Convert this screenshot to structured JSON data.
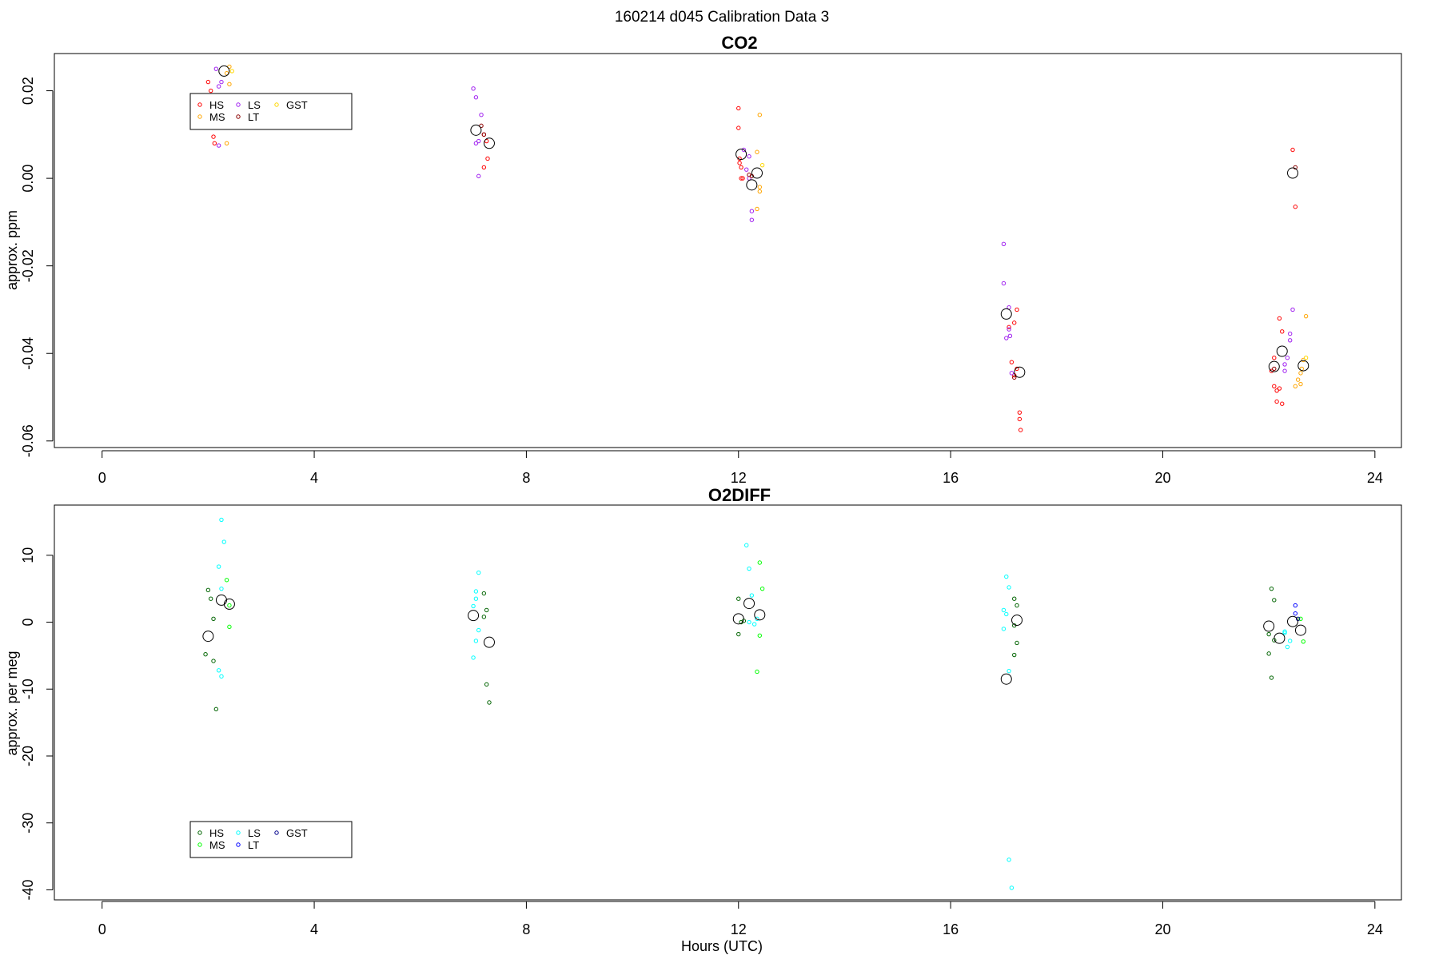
{
  "figure": {
    "title": "160214   d045   Calibration Data 3",
    "xlabel": "Hours (UTC)"
  },
  "chart_data": [
    {
      "type": "scatter",
      "title": "CO2",
      "xlabel": "",
      "ylabel": "approx. ppm",
      "xlim": [
        -0.9,
        24.5
      ],
      "ylim": [
        -0.0615,
        0.0285
      ],
      "xticks": [
        0,
        4,
        8,
        12,
        16,
        20,
        24
      ],
      "yticks": [
        -0.06,
        -0.04,
        -0.02,
        0.0,
        0.02
      ],
      "ytick_labels": [
        "-0.06",
        "-0.04",
        "-0.02",
        "0.00",
        "0.02"
      ],
      "grid": false,
      "legend": {
        "position": "top-left",
        "entries": [
          "HS",
          "MS",
          "LS",
          "LT",
          "GST"
        ]
      },
      "series": [
        {
          "name": "HS",
          "color": "#ff0000",
          "points": [
            [
              2.0,
              0.022
            ],
            [
              2.05,
              0.02
            ],
            [
              2.1,
              0.0095
            ],
            [
              2.12,
              0.008
            ],
            [
              7.2,
              0.01
            ],
            [
              7.25,
              0.0085
            ],
            [
              7.27,
              0.0045
            ],
            [
              7.2,
              0.0025
            ],
            [
              12.0,
              0.016
            ],
            [
              12.0,
              0.0115
            ],
            [
              12.02,
              0.0045
            ],
            [
              12.02,
              0.0035
            ],
            [
              12.05,
              0.0025
            ],
            [
              12.05,
              0.0
            ],
            [
              12.08,
              0.0
            ],
            [
              17.1,
              -0.034
            ],
            [
              17.15,
              -0.042
            ],
            [
              17.2,
              -0.033
            ],
            [
              17.2,
              -0.045
            ],
            [
              17.25,
              -0.03
            ],
            [
              17.25,
              -0.0435
            ],
            [
              17.3,
              -0.0535
            ],
            [
              17.3,
              -0.055
            ],
            [
              17.32,
              -0.0575
            ],
            [
              22.05,
              -0.044
            ],
            [
              22.1,
              -0.041
            ],
            [
              22.1,
              -0.0475
            ],
            [
              22.15,
              -0.0485
            ],
            [
              22.15,
              -0.051
            ],
            [
              22.2,
              -0.048
            ],
            [
              22.2,
              -0.032
            ],
            [
              22.25,
              -0.035
            ],
            [
              22.25,
              -0.0515
            ],
            [
              22.45,
              0.0065
            ],
            [
              22.5,
              -0.0065
            ]
          ]
        },
        {
          "name": "MS",
          "color": "#ffa500",
          "points": [
            [
              2.35,
              0.024
            ],
            [
              2.4,
              0.0255
            ],
            [
              2.4,
              0.0215
            ],
            [
              2.35,
              0.008
            ],
            [
              12.35,
              0.006
            ],
            [
              12.4,
              0.0145
            ],
            [
              12.4,
              -0.002
            ],
            [
              12.35,
              -0.007
            ],
            [
              12.4,
              -0.003
            ],
            [
              22.55,
              -0.046
            ],
            [
              22.6,
              -0.047
            ],
            [
              22.6,
              -0.0445
            ],
            [
              22.65,
              -0.0415
            ],
            [
              22.7,
              -0.0315
            ],
            [
              22.62,
              -0.0435
            ],
            [
              22.5,
              -0.0475
            ]
          ]
        },
        {
          "name": "LS",
          "color": "#a020f0",
          "points": [
            [
              2.15,
              0.025
            ],
            [
              2.2,
              0.021
            ],
            [
              2.25,
              0.022
            ],
            [
              2.2,
              0.0075
            ],
            [
              7.0,
              0.0205
            ],
            [
              7.05,
              0.0185
            ],
            [
              7.05,
              0.008
            ],
            [
              7.1,
              0.0005
            ],
            [
              7.15,
              0.0145
            ],
            [
              7.1,
              0.0085
            ],
            [
              12.1,
              0.0065
            ],
            [
              12.15,
              0.002
            ],
            [
              12.2,
              0.005
            ],
            [
              12.2,
              0.0
            ],
            [
              12.25,
              -0.0075
            ],
            [
              12.25,
              -0.0095
            ],
            [
              17.0,
              -0.015
            ],
            [
              17.0,
              -0.024
            ],
            [
              17.05,
              -0.0365
            ],
            [
              17.1,
              -0.0345
            ],
            [
              17.1,
              -0.0295
            ],
            [
              17.12,
              -0.036
            ],
            [
              17.15,
              -0.0445
            ],
            [
              22.3,
              -0.0425
            ],
            [
              22.35,
              -0.041
            ],
            [
              22.4,
              -0.037
            ],
            [
              22.4,
              -0.0355
            ],
            [
              22.45,
              -0.03
            ],
            [
              22.3,
              -0.044
            ]
          ]
        },
        {
          "name": "LT",
          "color": "#8b0000",
          "points": [
            [
              7.15,
              0.012
            ],
            [
              7.2,
              0.01
            ],
            [
              12.2,
              0.0008
            ],
            [
              12.25,
              0.0005
            ],
            [
              17.2,
              -0.0455
            ],
            [
              22.5,
              0.0025
            ],
            [
              22.1,
              -0.0435
            ]
          ]
        },
        {
          "name": "GST",
          "color": "#ffd700",
          "points": [
            [
              2.45,
              0.0245
            ],
            [
              12.45,
              0.003
            ],
            [
              22.7,
              -0.041
            ]
          ]
        }
      ],
      "means": [
        [
          2.3,
          0.0245
        ],
        [
          7.05,
          0.011
        ],
        [
          7.3,
          0.008
        ],
        [
          12.05,
          0.0055
        ],
        [
          12.25,
          -0.0015
        ],
        [
          12.35,
          0.0012
        ],
        [
          17.05,
          -0.031
        ],
        [
          17.3,
          -0.0443
        ],
        [
          22.1,
          -0.043
        ],
        [
          22.25,
          -0.0395
        ],
        [
          22.45,
          0.0012
        ],
        [
          22.65,
          -0.0428
        ]
      ]
    },
    {
      "type": "scatter",
      "title": "O2DIFF",
      "xlabel": "Hours (UTC)",
      "ylabel": "approx. per meg",
      "xlim": [
        -0.9,
        24.5
      ],
      "ylim": [
        -41.5,
        17.5
      ],
      "xticks": [
        0,
        4,
        8,
        12,
        16,
        20,
        24
      ],
      "yticks": [
        -40,
        -30,
        -20,
        -10,
        0,
        10
      ],
      "ytick_labels": [
        "-40",
        "-30",
        "-20",
        "-10",
        "0",
        "10"
      ],
      "grid": false,
      "legend": {
        "position": "bottom-left",
        "entries": [
          "HS",
          "MS",
          "LS",
          "LT",
          "GST"
        ]
      },
      "series": [
        {
          "name": "HS",
          "color": "#006400",
          "points": [
            [
              2.0,
              4.8
            ],
            [
              2.05,
              3.5
            ],
            [
              2.1,
              0.5
            ],
            [
              1.95,
              -4.8
            ],
            [
              2.1,
              -5.8
            ],
            [
              2.15,
              -13
            ],
            [
              7.2,
              4.3
            ],
            [
              7.25,
              1.8
            ],
            [
              7.2,
              0.8
            ],
            [
              7.25,
              -9.3
            ],
            [
              7.3,
              -12
            ],
            [
              12.0,
              3.5
            ],
            [
              12.0,
              -1.8
            ],
            [
              12.05,
              0
            ],
            [
              12.1,
              0.2
            ],
            [
              17.2,
              3.5
            ],
            [
              17.25,
              2.5
            ],
            [
              17.2,
              -0.5
            ],
            [
              17.25,
              -3.1
            ],
            [
              17.2,
              -4.9
            ],
            [
              22.05,
              5
            ],
            [
              22.1,
              3.3
            ],
            [
              22.0,
              -1.8
            ],
            [
              22.1,
              -2.7
            ],
            [
              22.0,
              -4.7
            ],
            [
              22.05,
              -8.3
            ]
          ]
        },
        {
          "name": "MS",
          "color": "#00ff00",
          "points": [
            [
              2.35,
              6.3
            ],
            [
              2.4,
              2.5
            ],
            [
              2.4,
              -0.7
            ],
            [
              12.4,
              8.9
            ],
            [
              12.45,
              5
            ],
            [
              12.4,
              -2.0
            ],
            [
              12.35,
              -7.4
            ],
            [
              22.65,
              -2.9
            ],
            [
              22.6,
              0.5
            ]
          ]
        },
        {
          "name": "LS",
          "color": "#00ffff",
          "points": [
            [
              2.25,
              15.3
            ],
            [
              2.3,
              12
            ],
            [
              2.2,
              8.3
            ],
            [
              2.25,
              5
            ],
            [
              2.2,
              -7.2
            ],
            [
              2.25,
              -8.1
            ],
            [
              7.1,
              7.4
            ],
            [
              7.05,
              4.6
            ],
            [
              7.05,
              3.5
            ],
            [
              7.0,
              2.4
            ],
            [
              7.1,
              -1.2
            ],
            [
              7.05,
              -2.8
            ],
            [
              7.0,
              -5.3
            ],
            [
              12.15,
              11.5
            ],
            [
              12.2,
              8.0
            ],
            [
              12.25,
              4.0
            ],
            [
              12.2,
              0
            ],
            [
              12.3,
              -0.3
            ],
            [
              12.35,
              0.5
            ],
            [
              17.05,
              6.8
            ],
            [
              17.1,
              5.2
            ],
            [
              17.0,
              1.8
            ],
            [
              17.05,
              1.2
            ],
            [
              17.0,
              -1
            ],
            [
              17.1,
              -7.3
            ],
            [
              17.1,
              -35.5
            ],
            [
              17.15,
              -39.7
            ],
            [
              22.3,
              -1.4
            ],
            [
              22.4,
              -2.8
            ],
            [
              22.35,
              -3.7
            ],
            [
              22.3,
              -1.6
            ]
          ]
        },
        {
          "name": "LT",
          "color": "#0000ff",
          "points": [
            [
              22.5,
              2.5
            ],
            [
              22.5,
              1.3
            ]
          ]
        },
        {
          "name": "GST",
          "color": "#00008b",
          "points": [
            [
              22.55,
              0.5
            ]
          ]
        }
      ],
      "means": [
        [
          2.0,
          -2.1
        ],
        [
          2.25,
          3.3
        ],
        [
          2.4,
          2.7
        ],
        [
          7.0,
          1.0
        ],
        [
          7.3,
          -3.0
        ],
        [
          12.0,
          0.5
        ],
        [
          12.2,
          2.8
        ],
        [
          12.4,
          1.1
        ],
        [
          17.05,
          -8.5
        ],
        [
          17.25,
          0.3
        ],
        [
          22.0,
          -0.6
        ],
        [
          22.2,
          -2.4
        ],
        [
          22.45,
          0.1
        ],
        [
          22.6,
          -1.2
        ]
      ]
    }
  ]
}
